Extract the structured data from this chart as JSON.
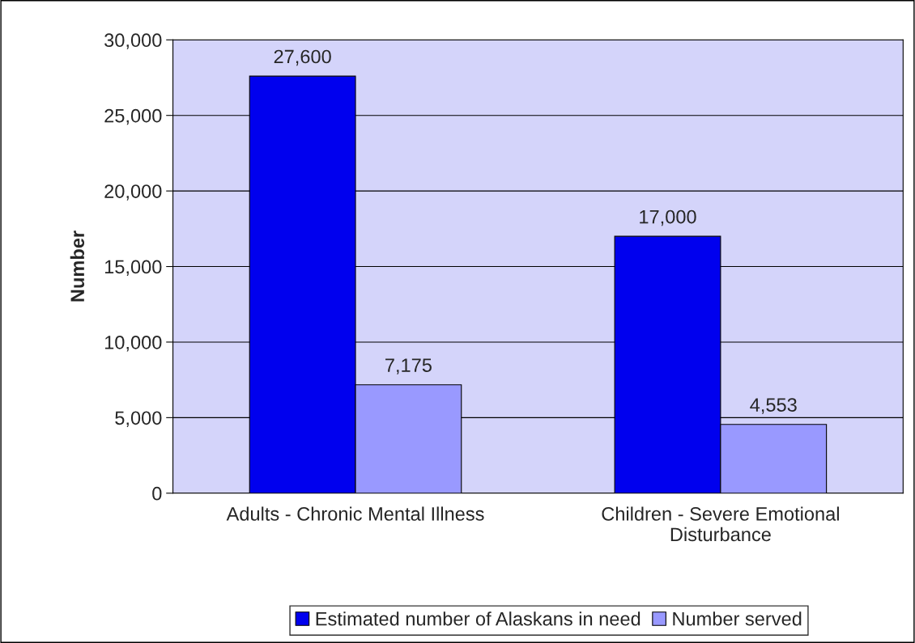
{
  "chart_data": {
    "type": "bar",
    "ylabel": "Number",
    "categories": [
      "Adults - Chronic Mental Illness",
      "Children - Severe Emotional\nDisturbance"
    ],
    "series": [
      {
        "name": "Estimated number of Alaskans in need",
        "color": "#0000ee",
        "values": [
          27600,
          17000
        ],
        "value_labels": [
          "27,600",
          "17,000"
        ]
      },
      {
        "name": "Number served",
        "color": "#9999ff",
        "values": [
          7175,
          4553
        ],
        "value_labels": [
          "7,175",
          "4,553"
        ]
      }
    ],
    "ylim": [
      0,
      30000
    ],
    "yticks": [
      0,
      {
        "value": 5000,
        "label": "5,000"
      },
      {
        "value": 10000,
        "label": "10,000"
      },
      {
        "value": 15000,
        "label": "15,000"
      },
      {
        "value": 20000,
        "label": "20,000"
      },
      {
        "value": 25000,
        "label": "25,000"
      },
      {
        "value": 30000,
        "label": "30,000"
      }
    ],
    "grid": "y",
    "legend": "bottom"
  }
}
